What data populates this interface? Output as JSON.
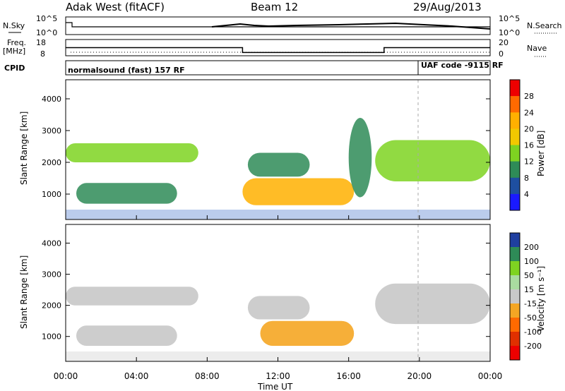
{
  "header": {
    "station": "Adak West (fitACF)",
    "beam": "Beam 12",
    "date": "29/Aug/2013"
  },
  "top_panels": {
    "nsky_label": "N.Sky",
    "nsky_ticks": [
      "10^5",
      "10^0"
    ],
    "nsearch_label": "N.Search",
    "nsearch_ticks": [
      "10^5",
      "10^0"
    ],
    "freq_label_1": "Freq.",
    "freq_label_2": "[MHz]",
    "freq_ticks": [
      "18",
      "8"
    ],
    "nave_label": "Nave",
    "nave_ticks": [
      "20",
      "0"
    ],
    "cpid_label": "CPID",
    "cpid_left": "normalsound (fast) 157 RF",
    "cpid_right": "UAF code -9115 RF",
    "freq_series": [
      {
        "t": 0.0,
        "f": 13
      },
      {
        "t": 10.0,
        "f": 13
      },
      {
        "t": 10.0,
        "f": 10
      },
      {
        "t": 18.0,
        "f": 10
      },
      {
        "t": 18.0,
        "f": 13
      },
      {
        "t": 24.0,
        "f": 13
      }
    ]
  },
  "chart_data": [
    {
      "type": "heatmap",
      "title": "",
      "xlabel": "",
      "ylabel": "Slant Range [km]",
      "ylim": [
        200,
        4600
      ],
      "xlim": [
        0,
        24
      ],
      "y_ticks": [
        "1000",
        "2000",
        "3000",
        "4000"
      ],
      "colorbar": {
        "label": "Power [dB]",
        "ticks": [
          "28",
          "24",
          "20",
          "16",
          "12",
          "8",
          "4"
        ],
        "colors": [
          "#ee0000",
          "#ff6a00",
          "#ffb000",
          "#f2c800",
          "#7ed321",
          "#2e8b57",
          "#1e4fa0",
          "#1a1aff"
        ]
      },
      "echo_bands": [
        {
          "t0": 0.0,
          "t1": 7.5,
          "r0": 2000,
          "r1": 2600,
          "level": 12
        },
        {
          "t0": 0.6,
          "t1": 6.3,
          "r0": 700,
          "r1": 1350,
          "level": 8
        },
        {
          "t0": 10.0,
          "t1": 16.3,
          "r0": 650,
          "r1": 1500,
          "level": 20
        },
        {
          "t0": 10.3,
          "t1": 13.8,
          "r0": 1550,
          "r1": 2300,
          "level": 10
        },
        {
          "t0": 16.0,
          "t1": 17.3,
          "r0": 900,
          "r1": 3400,
          "level": 8
        },
        {
          "t0": 17.5,
          "t1": 24.0,
          "r0": 1400,
          "r1": 2700,
          "level": 12
        }
      ]
    },
    {
      "type": "heatmap",
      "title": "",
      "xlabel": "Time UT",
      "ylabel": "Slant Range [km]",
      "ylim": [
        200,
        4600
      ],
      "xlim": [
        0,
        24
      ],
      "y_ticks": [
        "1000",
        "2000",
        "3000",
        "4000"
      ],
      "x_ticks": [
        "00:00",
        "04:00",
        "08:00",
        "12:00",
        "16:00",
        "20:00",
        "00:00"
      ],
      "colorbar": {
        "label": "Velocity [m s⁻¹]",
        "ticks": [
          "200",
          "100",
          "50",
          "15",
          "-15",
          "-50",
          "-100",
          "-200"
        ],
        "colors": [
          "#1f3fa0",
          "#2e8b57",
          "#7ed321",
          "#a9dca0",
          "#c8c8c8",
          "#f5a623",
          "#ff6a00",
          "#e03000",
          "#ee0000"
        ]
      },
      "echo_bands": [
        {
          "t0": 0.0,
          "t1": 7.5,
          "r0": 2000,
          "r1": 2600,
          "velocity": 0
        },
        {
          "t0": 0.6,
          "t1": 6.3,
          "r0": 700,
          "r1": 1350,
          "velocity": 0
        },
        {
          "t0": 11.0,
          "t1": 16.3,
          "r0": 700,
          "r1": 1500,
          "velocity": -50
        },
        {
          "t0": 10.3,
          "t1": 13.8,
          "r0": 1550,
          "r1": 2300,
          "velocity": 0
        },
        {
          "t0": 17.5,
          "t1": 24.0,
          "r0": 1400,
          "r1": 2700,
          "velocity": 0
        }
      ]
    }
  ]
}
